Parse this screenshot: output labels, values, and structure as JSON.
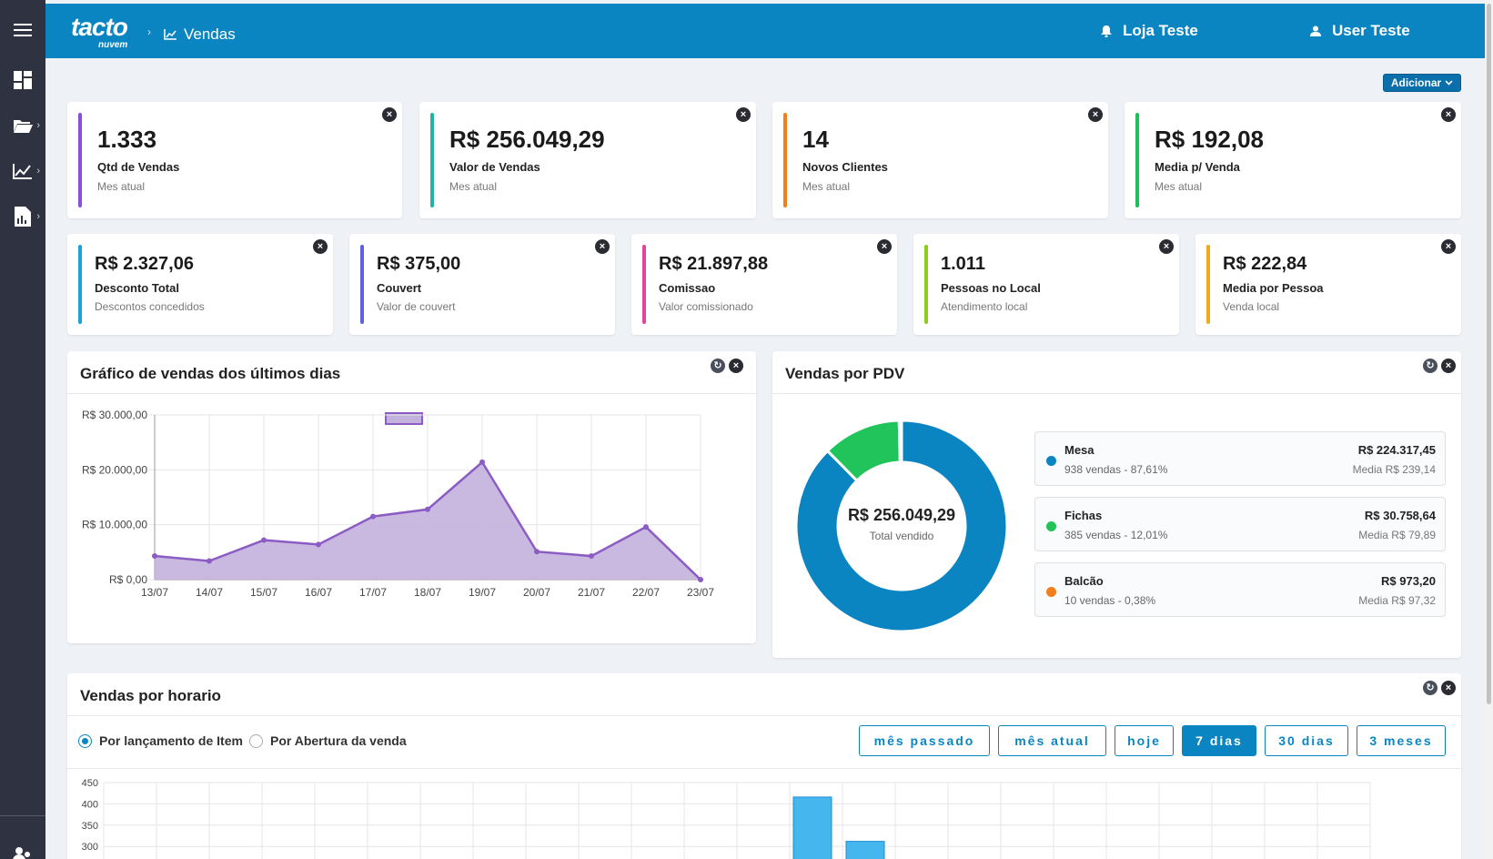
{
  "header": {
    "logo_main": "tacto",
    "logo_sub": "nuvem",
    "crumb_sep": "›",
    "page": "Vendas",
    "store": "Loja Teste",
    "user": "User Teste"
  },
  "toolbar": {
    "add_label": "Adicionar"
  },
  "stats_top": [
    {
      "value": "1.333",
      "label": "Qtd de Vendas",
      "sub": "Mes atual",
      "color": "#8a4fd6"
    },
    {
      "value": "R$ 256.049,29",
      "label": "Valor de Vendas",
      "sub": "Mes atual",
      "color": "#1fb5a3"
    },
    {
      "value": "14",
      "label": "Novos Clientes",
      "sub": "Mes atual",
      "color": "#f07f1c"
    },
    {
      "value": "R$ 192,08",
      "label": "Media p/ Venda",
      "sub": "Mes atual",
      "color": "#1ec05c"
    }
  ],
  "stats_bottom": [
    {
      "value": "R$ 2.327,06",
      "label": "Desconto Total",
      "sub": "Descontos concedidos",
      "color": "#1aa3d9"
    },
    {
      "value": "R$ 375,00",
      "label": "Couvert",
      "sub": "Valor de couvert",
      "color": "#6060e0"
    },
    {
      "value": "R$ 21.897,88",
      "label": "Comissao",
      "sub": "Valor comissionado",
      "color": "#e5439c"
    },
    {
      "value": "1.011",
      "label": "Pessoas no Local",
      "sub": "Atendimento local",
      "color": "#8ccc1f"
    },
    {
      "value": "R$ 222,84",
      "label": "Media por Pessoa",
      "sub": "Venda local",
      "color": "#f2a91c"
    }
  ],
  "sales_chart": {
    "title": "Gráfico de vendas dos últimos dias",
    "chart_data": {
      "type": "area",
      "x": [
        "13/07",
        "14/07",
        "15/07",
        "16/07",
        "17/07",
        "18/07",
        "19/07",
        "20/07",
        "21/07",
        "22/07",
        "23/07"
      ],
      "values": [
        4300,
        3400,
        7200,
        6400,
        11500,
        12800,
        21400,
        5100,
        4300,
        9600,
        0
      ],
      "ylim": [
        0,
        30000
      ],
      "yticks": [
        "R$ 0,00",
        "R$ 10.000,00",
        "R$ 20.000,00",
        "R$ 30.000,00"
      ],
      "ytick_values": [
        0,
        10000,
        20000,
        30000
      ],
      "color": "#8a5cc4",
      "fill": "#c3b1de",
      "grid": true
    }
  },
  "pdv": {
    "title": "Vendas por PDV",
    "total": "R$ 256.049,29",
    "total_label": "Total vendido",
    "chart_data": {
      "type": "pie",
      "labels": [
        "Mesa",
        "Fichas",
        "Balcão"
      ],
      "values": [
        87.61,
        12.01,
        0.38
      ],
      "colors": [
        "#0a85c2",
        "#20c45a",
        "#f07f1c"
      ]
    },
    "items": [
      {
        "name": "Mesa",
        "desc": "938 vendas - 87,61%",
        "amount": "R$ 224.317,45",
        "avg": "Media R$ 239,14",
        "color": "#0a85c2"
      },
      {
        "name": "Fichas",
        "desc": "385 vendas - 12,01%",
        "amount": "R$ 30.758,64",
        "avg": "Media R$ 79,89",
        "color": "#20c45a"
      },
      {
        "name": "Balcão",
        "desc": "10 vendas - 0,38%",
        "amount": "R$ 973,20",
        "avg": "Media R$ 97,32",
        "color": "#f07f1c"
      }
    ]
  },
  "horario": {
    "title": "Vendas por horario",
    "radio_item": "Por lançamento de Item",
    "radio_abertura": "Por Abertura da venda",
    "ranges": [
      "mês passado",
      "mês atual",
      "hoje",
      "7 dias",
      "30 dias",
      "3 meses"
    ],
    "active_range": "7 dias",
    "chart_data": {
      "type": "bar",
      "yticks": [
        450,
        400,
        350,
        300
      ],
      "ylim": [
        300,
        450
      ],
      "bars": [
        {
          "slot": 13,
          "value": 416
        },
        {
          "slot": 14,
          "value": 312
        }
      ],
      "color": "#45b6ee"
    }
  },
  "icons": {
    "close": "×",
    "refresh": "↻",
    "chevron": "›"
  }
}
